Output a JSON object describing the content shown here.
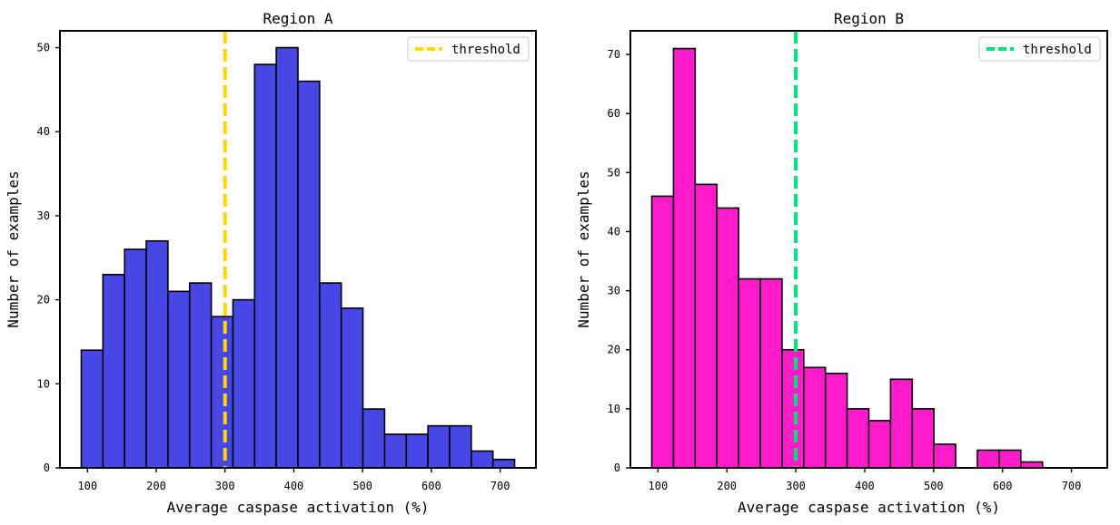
{
  "chart_data": [
    {
      "type": "bar",
      "title": "Region A",
      "xlabel": "Average caspase activation (%)",
      "ylabel": "Number of examples",
      "xlim": [
        60,
        752
      ],
      "ylim": [
        0,
        52
      ],
      "xticks": [
        100,
        200,
        300,
        400,
        500,
        600,
        700
      ],
      "yticks": [
        0,
        10,
        20,
        30,
        40,
        50
      ],
      "bin_start": 91,
      "bin_width": 31.5,
      "values": [
        14,
        23,
        26,
        27,
        21,
        22,
        18,
        20,
        48,
        50,
        46,
        22,
        19,
        7,
        4,
        4,
        5,
        5,
        2,
        1
      ],
      "bar_color": "#4747E6",
      "threshold": {
        "x": 300,
        "label": "threshold",
        "color": "#FFD700",
        "style": "dashed"
      },
      "legend": "top-right"
    },
    {
      "type": "bar",
      "title": "Region B",
      "xlabel": "Average caspase activation (%)",
      "ylabel": "Number of examples",
      "xlim": [
        60,
        752
      ],
      "ylim": [
        0,
        74
      ],
      "xticks": [
        100,
        200,
        300,
        400,
        500,
        600,
        700
      ],
      "yticks": [
        0,
        10,
        20,
        30,
        40,
        50,
        60,
        70
      ],
      "bin_start": 91,
      "bin_width": 31.5,
      "values": [
        46,
        71,
        48,
        44,
        32,
        32,
        20,
        17,
        16,
        10,
        8,
        15,
        10,
        4,
        0,
        3,
        3,
        1,
        0,
        0
      ],
      "bar_color": "#FF1ACB",
      "threshold": {
        "x": 300,
        "label": "threshold",
        "color": "#00E676",
        "style": "dashed"
      },
      "legend": "top-right"
    }
  ]
}
